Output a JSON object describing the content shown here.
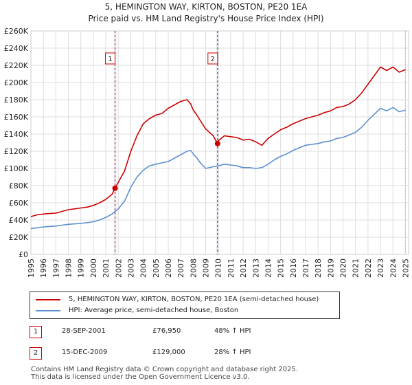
{
  "chart_data": {
    "type": "line",
    "title": "5, HEMINGTON WAY, KIRTON, BOSTON, PE20 1EA",
    "subtitle": "Price paid vs. HM Land Registry's House Price Index (HPI)",
    "xlim": [
      1995,
      2025.25
    ],
    "ylim": [
      0,
      260000
    ],
    "y_ticks": [
      0,
      20000,
      40000,
      60000,
      80000,
      100000,
      120000,
      140000,
      160000,
      180000,
      200000,
      220000,
      240000,
      260000
    ],
    "y_tick_labels": [
      "£0",
      "£20K",
      "£40K",
      "£60K",
      "£80K",
      "£100K",
      "£120K",
      "£140K",
      "£160K",
      "£180K",
      "£200K",
      "£220K",
      "£240K",
      "£260K"
    ],
    "x_ticks": [
      1995,
      1996,
      1997,
      1998,
      1999,
      2000,
      2001,
      2002,
      2003,
      2004,
      2005,
      2006,
      2007,
      2008,
      2009,
      2010,
      2011,
      2012,
      2013,
      2014,
      2015,
      2016,
      2017,
      2018,
      2019,
      2020,
      2021,
      2022,
      2023,
      2024,
      2025
    ],
    "x_tick_labels": [
      "1995",
      "1996",
      "1997",
      "1998",
      "1999",
      "2000",
      "2001",
      "2002",
      "2003",
      "2004",
      "2005",
      "2006",
      "2007",
      "2008",
      "2009",
      "2010",
      "2011",
      "2012",
      "2013",
      "2014",
      "2015",
      "2016",
      "2017",
      "2018",
      "2019",
      "2020",
      "2021",
      "2022",
      "2023",
      "2024",
      "2025"
    ],
    "grid": true,
    "series": [
      {
        "name": "5, HEMINGTON WAY, KIRTON, BOSTON, PE20 1EA (semi-detached house)",
        "color": "#cc0000",
        "x": [
          1995.0,
          1995.5,
          1996.0,
          1996.5,
          1997.0,
          1997.5,
          1998.0,
          1998.5,
          1999.0,
          1999.5,
          2000.0,
          2000.5,
          2001.0,
          2001.5,
          2001.74,
          2002.0,
          2002.5,
          2003.0,
          2003.5,
          2004.0,
          2004.5,
          2005.0,
          2005.5,
          2006.0,
          2006.5,
          2007.0,
          2007.5,
          2007.8,
          2008.0,
          2008.3,
          2008.6,
          2009.0,
          2009.3,
          2009.6,
          2009.95,
          2010.0,
          2010.5,
          2011.0,
          2011.5,
          2012.0,
          2012.5,
          2013.0,
          2013.5,
          2014.0,
          2014.5,
          2015.0,
          2015.5,
          2016.0,
          2016.5,
          2017.0,
          2017.5,
          2018.0,
          2018.5,
          2019.0,
          2019.5,
          2020.0,
          2020.5,
          2021.0,
          2021.5,
          2022.0,
          2022.5,
          2023.0,
          2023.5,
          2024.0,
          2024.5,
          2025.0
        ],
        "y": [
          44000,
          46000,
          47000,
          47500,
          48000,
          50000,
          52000,
          53000,
          54000,
          55000,
          57000,
          60000,
          64000,
          70000,
          76950,
          84000,
          97000,
          120000,
          138000,
          152000,
          158000,
          162000,
          164000,
          170000,
          174000,
          178000,
          180000,
          175000,
          168000,
          162000,
          155000,
          146000,
          142000,
          138000,
          129000,
          132000,
          138000,
          137000,
          136000,
          133000,
          134000,
          131000,
          127000,
          135000,
          140000,
          145000,
          148000,
          152000,
          155000,
          158000,
          160000,
          162000,
          165000,
          167000,
          171000,
          172000,
          175000,
          180000,
          188000,
          198000,
          208000,
          218000,
          214000,
          218000,
          212000,
          215000
        ]
      },
      {
        "name": "HPI: Average price, semi-detached house, Boston",
        "color": "#5b8fd0",
        "x": [
          1995.0,
          1995.5,
          1996.0,
          1996.5,
          1997.0,
          1997.5,
          1998.0,
          1998.5,
          1999.0,
          1999.5,
          2000.0,
          2000.5,
          2001.0,
          2001.5,
          2002.0,
          2002.5,
          2003.0,
          2003.5,
          2004.0,
          2004.5,
          2005.0,
          2005.5,
          2006.0,
          2006.5,
          2007.0,
          2007.5,
          2007.8,
          2008.0,
          2008.3,
          2008.6,
          2009.0,
          2009.3,
          2009.6,
          2010.0,
          2010.5,
          2011.0,
          2011.5,
          2012.0,
          2012.5,
          2013.0,
          2013.5,
          2014.0,
          2014.5,
          2015.0,
          2015.5,
          2016.0,
          2016.5,
          2017.0,
          2017.5,
          2018.0,
          2018.5,
          2019.0,
          2019.5,
          2020.0,
          2020.5,
          2021.0,
          2021.5,
          2022.0,
          2022.5,
          2023.0,
          2023.5,
          2024.0,
          2024.5,
          2025.0
        ],
        "y": [
          30000,
          31000,
          32000,
          32500,
          33000,
          34000,
          35000,
          35500,
          36000,
          37000,
          38000,
          40000,
          43000,
          47000,
          53000,
          62000,
          78000,
          90000,
          98000,
          103000,
          105000,
          106500,
          108000,
          112000,
          116000,
          120000,
          121000,
          117000,
          112000,
          106000,
          100000,
          101000,
          102000,
          103000,
          105000,
          104000,
          103000,
          101000,
          101000,
          100000,
          101000,
          105000,
          110000,
          114000,
          117000,
          121000,
          124000,
          127000,
          128000,
          129000,
          131000,
          132000,
          135000,
          136000,
          139000,
          142000,
          148000,
          156000,
          163000,
          170000,
          167000,
          171000,
          166000,
          168000
        ]
      }
    ],
    "sales": [
      {
        "label": "1",
        "x": 2001.74,
        "y": 76950,
        "date": "28-SEP-2001",
        "price": "£76,950",
        "hpi_change": "48% ↑ HPI"
      },
      {
        "label": "2",
        "x": 2009.95,
        "y": 129000,
        "date": "15-DEC-2009",
        "price": "£129,000",
        "hpi_change": "28% ↑ HPI"
      }
    ]
  },
  "footer": {
    "line1": "Contains HM Land Registry data © Crown copyright and database right 2025.",
    "line2": "This data is licensed under the Open Government Licence v3.0."
  }
}
